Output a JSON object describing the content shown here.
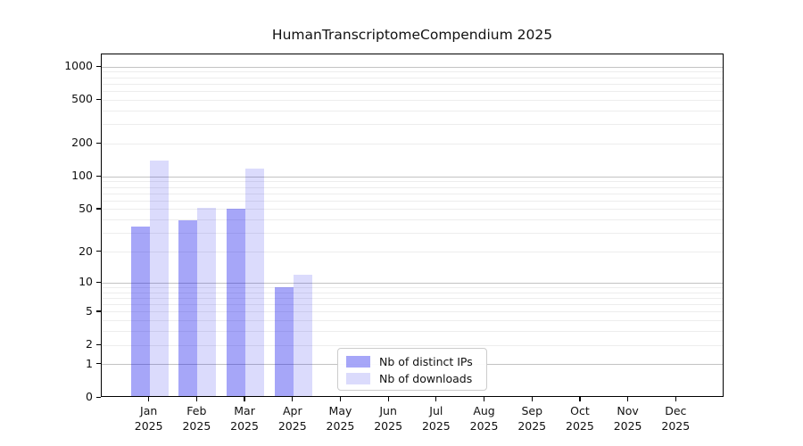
{
  "title": "HumanTranscriptomeCompendium 2025",
  "chart_data": {
    "type": "bar",
    "title": "HumanTranscriptomeCompendium 2025",
    "categories": [
      "Jan 2025",
      "Feb 2025",
      "Mar 2025",
      "Apr 2025",
      "May 2025",
      "Jun 2025",
      "Jul 2025",
      "Aug 2025",
      "Sep 2025",
      "Oct 2025",
      "Nov 2025",
      "Dec 2025"
    ],
    "x_tick_month_names": [
      "Jan",
      "Feb",
      "Mar",
      "Apr",
      "May",
      "Jun",
      "Jul",
      "Aug",
      "Sep",
      "Oct",
      "Nov",
      "Dec"
    ],
    "x_tick_year": "2025",
    "series": [
      {
        "name": "Nb of distinct IPs",
        "color": "rgba(0,0,235,0.35)",
        "values": [
          35,
          40,
          51,
          9,
          0,
          0,
          0,
          0,
          0,
          0,
          0,
          0
        ]
      },
      {
        "name": "Nb of downloads",
        "color": "rgba(0,0,235,0.14)",
        "values": [
          140,
          52,
          120,
          12,
          0,
          0,
          0,
          0,
          0,
          0,
          0,
          0
        ]
      }
    ],
    "y_scale": "log10(1+x)",
    "y_tick_labels": [
      "0",
      "1",
      "2",
      "5",
      "10",
      "20",
      "50",
      "100",
      "200",
      "500",
      "1000"
    ],
    "y_ticks": [
      0,
      1,
      2,
      5,
      10,
      20,
      50,
      100,
      200,
      500,
      1000
    ],
    "grid": {
      "horizontal": true,
      "major_lines_at": [
        1,
        10,
        100,
        1000
      ],
      "minor_lines": "2-9 of each decade"
    },
    "legend": {
      "position": "lower-center",
      "items": [
        "Nb of distinct IPs",
        "Nb of downloads"
      ]
    }
  }
}
